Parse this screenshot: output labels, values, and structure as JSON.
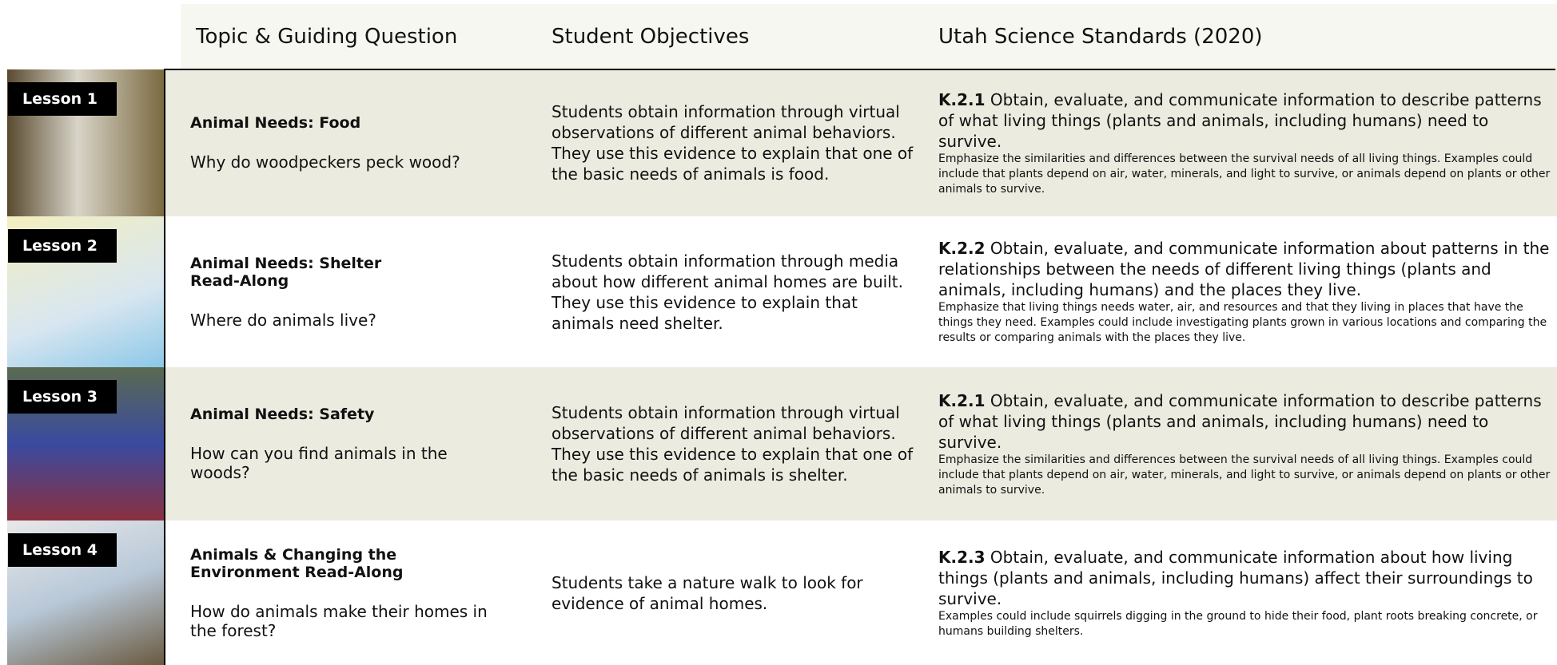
{
  "header": {
    "columns": [
      "Topic & Guiding Question",
      "Student Objectives",
      "Utah Science Standards (2020)"
    ]
  },
  "rows": [
    {
      "lesson": "Lesson 1",
      "topic": "Animal Needs: Food",
      "question": "Why do woodpeckers peck wood?",
      "objectives": "Students obtain information through virtual observations of different animal behaviors. They use this evidence to explain that one of the basic needs of animals is food.",
      "standard_code": "K.2.1",
      "standard_text": "Obtain, evaluate, and communicate information to describe patterns of what living things (plants and animals, including humans) need to survive.",
      "standard_note": "Emphasize the similarities and differences between the survival needs of all living things. Examples could include that plants depend on air, water, minerals, and light to survive, or animals depend on plants or other animals to survive."
    },
    {
      "lesson": "Lesson 2",
      "topic": "Animal Needs: Shelter Read-Along",
      "question": "Where do animals live?",
      "objectives": "Students obtain information through media about how different animal homes are built. They use this evidence to explain that animals need shelter.",
      "standard_code": "K.2.2",
      "standard_text": "Obtain, evaluate, and communicate information about patterns in the relationships between the needs of different living things (plants and animals, including humans) and the places they live.",
      "standard_note": "Emphasize that living things needs water, air, and resources and that they living in places that have the things they need. Examples could include investigating plants grown in various locations and comparing the results or comparing animals with the places they live."
    },
    {
      "lesson": "Lesson 3",
      "topic": "Animal Needs: Safety",
      "question": "How can you find animals in the woods?",
      "objectives": "Students obtain information through virtual observations of different animal behaviors. They use this evidence to explain that one of the basic needs of animals is shelter.",
      "standard_code": "K.2.1",
      "standard_text": "Obtain, evaluate, and communicate information to describe patterns of what living things (plants and animals, including humans) need to survive.",
      "standard_note": "Emphasize the similarities and differences between the survival needs of all living things. Examples could include that plants depend on air, water, minerals, and light to survive, or animals depend on plants or other animals to survive."
    },
    {
      "lesson": "Lesson 4",
      "topic": "Animals & Changing the Environment Read-Along",
      "question": "How do animals make their homes in the forest?",
      "objectives": "Students take a nature walk to look for evidence of animal homes.",
      "standard_code": "K.2.3",
      "standard_text": "Obtain, evaluate, and communicate information about how living things (plants and animals, including humans) affect their surroundings to survive.",
      "standard_note": "Examples could include squirrels digging in the ground to hide their food, plant roots breaking concrete, or humans building shelters."
    }
  ]
}
